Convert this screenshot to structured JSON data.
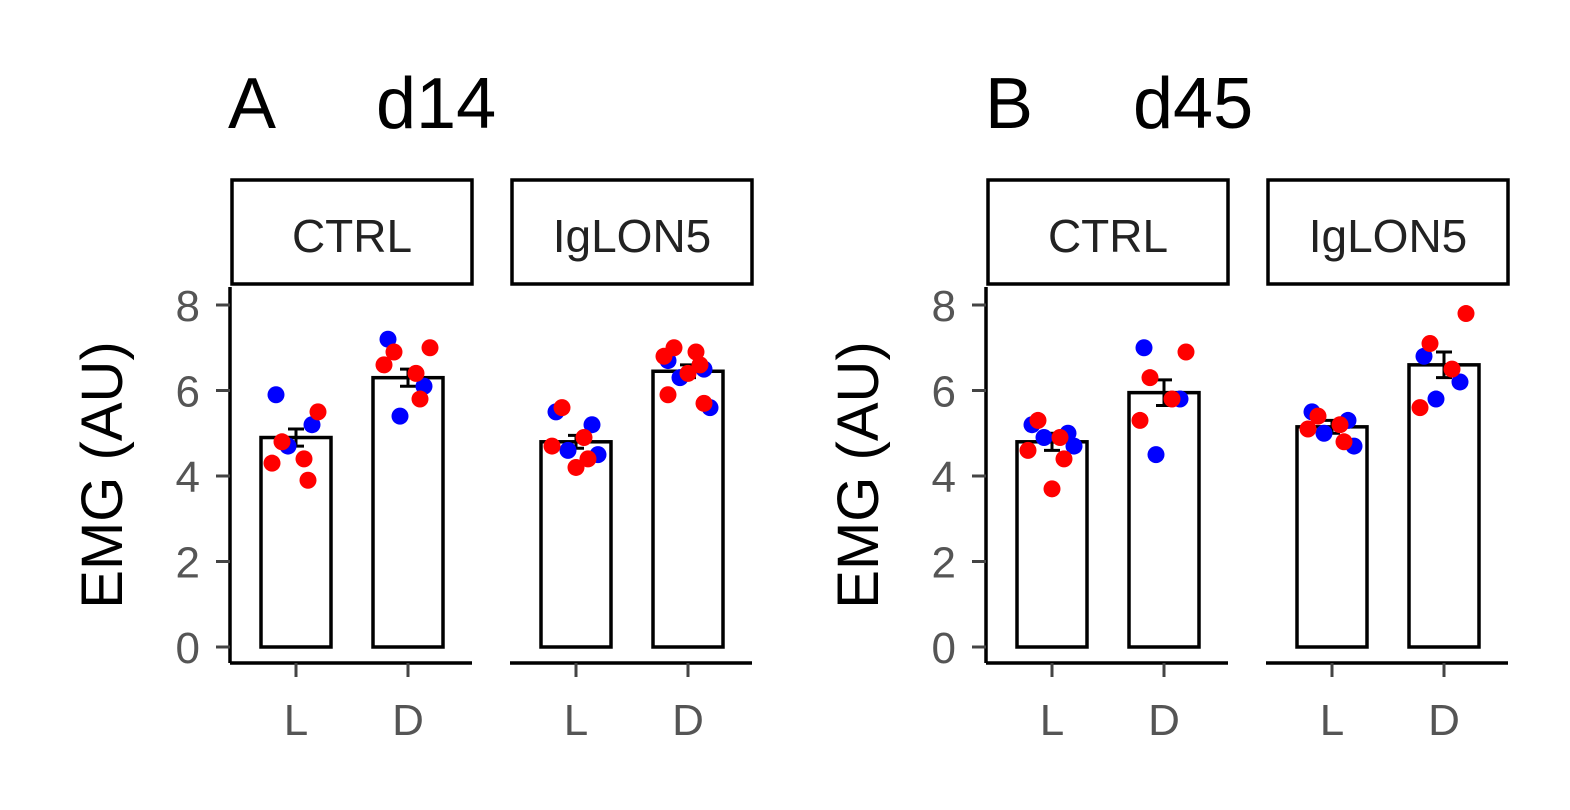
{
  "colors": {
    "group_blue": "#0000ff",
    "group_red": "#ff0000"
  },
  "chart_data": [
    {
      "type": "bar",
      "panel": "A",
      "title": "d14",
      "ylabel": "EMG (AU)",
      "xlabel": "",
      "ylim": [
        0,
        8
      ],
      "yticks": [
        0,
        2,
        4,
        6,
        8
      ],
      "facets": [
        {
          "label": "CTRL",
          "categories": [
            "L",
            "D"
          ],
          "values": [
            4.9,
            6.3
          ],
          "sem": [
            0.2,
            0.2
          ],
          "points": [
            {
              "blue": [
                5.9,
                5.2,
                4.7
              ],
              "red": [
                5.5,
                4.8,
                4.4,
                4.3,
                3.9
              ]
            },
            {
              "blue": [
                7.2,
                6.1,
                5.4
              ],
              "red": [
                7.0,
                6.9,
                6.4,
                6.6,
                5.8
              ]
            }
          ]
        },
        {
          "label": "IgLON5",
          "categories": [
            "L",
            "D"
          ],
          "values": [
            4.8,
            6.45
          ],
          "sem": [
            0.15,
            0.15
          ],
          "points": [
            {
              "blue": [
                5.5,
                5.2,
                4.6,
                4.5
              ],
              "red": [
                5.6,
                4.9,
                4.7,
                4.4,
                4.2
              ]
            },
            {
              "blue": [
                6.7,
                6.5,
                6.3,
                5.6
              ],
              "red": [
                7.0,
                6.9,
                6.8,
                6.6,
                6.4,
                5.9,
                5.7
              ]
            }
          ]
        }
      ]
    },
    {
      "type": "bar",
      "panel": "B",
      "title": "d45",
      "ylabel": "EMG (AU)",
      "xlabel": "",
      "ylim": [
        0,
        8
      ],
      "yticks": [
        0,
        2,
        4,
        6,
        8
      ],
      "facets": [
        {
          "label": "CTRL",
          "categories": [
            "L",
            "D"
          ],
          "values": [
            4.8,
            5.95
          ],
          "sem": [
            0.2,
            0.3
          ],
          "points": [
            {
              "blue": [
                5.2,
                5.0,
                4.9,
                4.7
              ],
              "red": [
                5.3,
                4.9,
                4.6,
                4.4,
                3.7
              ]
            },
            {
              "blue": [
                7.0,
                5.8,
                4.5
              ],
              "red": [
                6.9,
                6.3,
                5.8,
                5.3
              ]
            }
          ]
        },
        {
          "label": "IgLON5",
          "categories": [
            "L",
            "D"
          ],
          "values": [
            5.15,
            6.6
          ],
          "sem": [
            0.15,
            0.3
          ],
          "points": [
            {
              "blue": [
                5.5,
                5.3,
                5.0,
                4.7
              ],
              "red": [
                5.4,
                5.2,
                5.1,
                4.8
              ]
            },
            {
              "blue": [
                6.8,
                6.2,
                5.8
              ],
              "red": [
                7.8,
                7.1,
                6.5,
                5.6
              ]
            }
          ]
        }
      ]
    }
  ]
}
